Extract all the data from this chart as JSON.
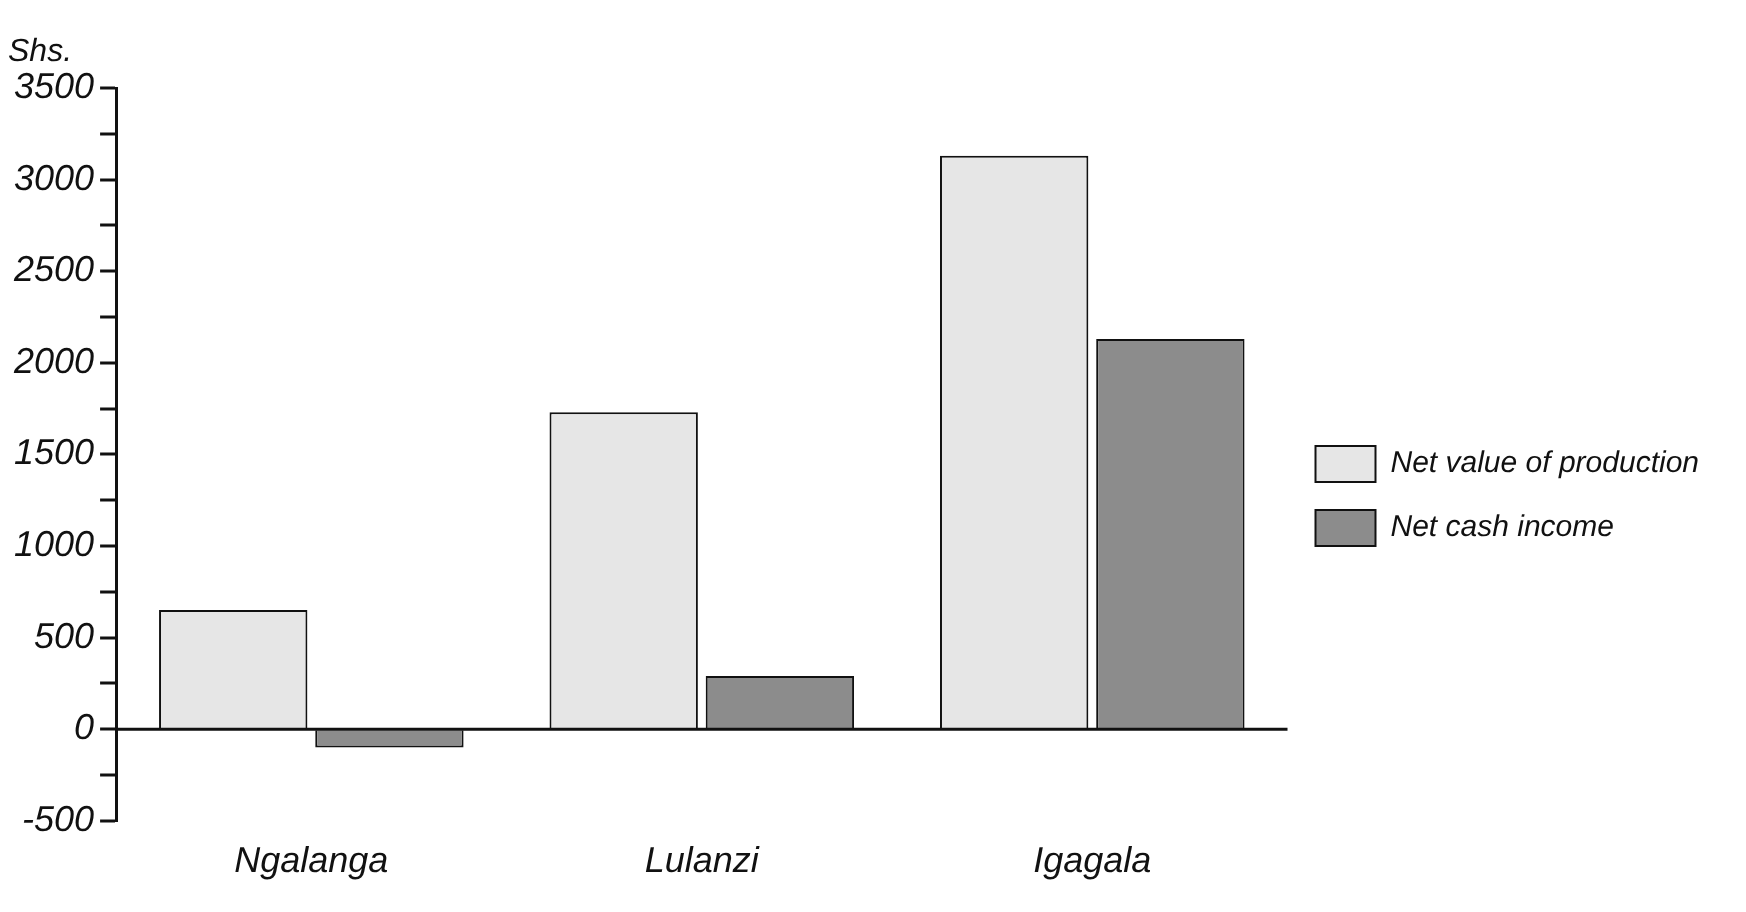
{
  "chart_data": {
    "type": "bar",
    "ylabel": "Shs.",
    "categories": [
      "Ngalanga",
      "Lulanzi",
      "Igagala"
    ],
    "series": [
      {
        "name": "Net value of production",
        "color": "#e6e6e6",
        "values": [
          650,
          1730,
          3130
        ]
      },
      {
        "name": "Net cash income",
        "color": "#8c8c8c",
        "values": [
          -100,
          290,
          2130
        ]
      }
    ],
    "ylim": [
      -500,
      3500
    ],
    "yticks": [
      -500,
      {
        "value": -250,
        "label": null
      },
      0,
      {
        "value": 250,
        "label": null
      },
      500,
      {
        "value": 750,
        "label": null
      },
      1000,
      {
        "value": 1250,
        "label": null
      },
      1500,
      {
        "value": 1750,
        "label": null
      },
      2000,
      {
        "value": 2250,
        "label": null
      },
      2500,
      {
        "value": 2750,
        "label": null
      },
      3000,
      {
        "value": 3250,
        "label": null
      },
      3500
    ],
    "ref_lines": [
      {
        "axis": "y",
        "value": 0
      }
    ],
    "grid": false,
    "legend": "right"
  }
}
